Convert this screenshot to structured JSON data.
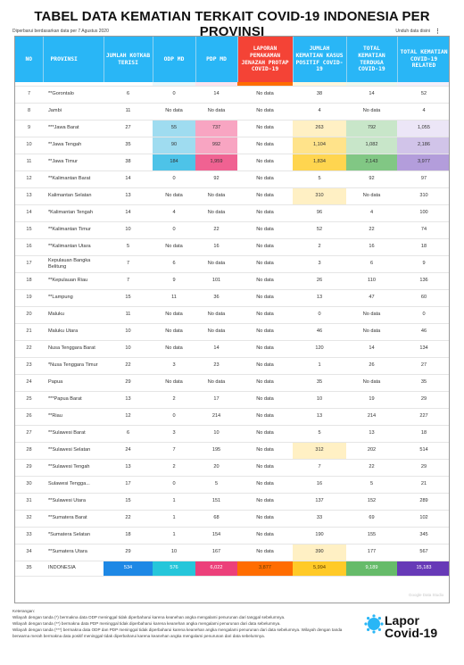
{
  "title": "TABEL DATA KEMATIAN TERKAIT COVID-19 INDONESIA PER PROVINSI",
  "updated": "Diperbarui berdasarkan data per 7 Agustus 2020",
  "download": "Unduh data disini",
  "headers": [
    "NO",
    "PROVINSI",
    "JUMLAH KOTKAB TERISI",
    "ODP MD",
    "PDP MD",
    "LAPORAN PEMAKAMAN JENAZAH PROTAP COVID-19",
    "JUMLAH KEMATIAN KASUS POSITIF COVID-19",
    "TOTAL KEMATIAN TERDUGA COVID-19",
    "TOTAL KEMATIAN COVID-19 RELATED"
  ],
  "header_colors": [
    "#29b6f6",
    "#29b6f6",
    "#29b6f6",
    "#29b6f6",
    "#29b6f6",
    "#f44336",
    "#29b6f6",
    "#29b6f6",
    "#29b6f6"
  ],
  "rows": [
    [
      "7",
      "**Gorontalo",
      "6",
      "0",
      "14",
      "No data",
      "38",
      "14",
      "52"
    ],
    [
      "8",
      "Jambi",
      "11",
      "No data",
      "No data",
      "No data",
      "4",
      "No data",
      "4"
    ],
    [
      "9",
      "***Jawa Barat",
      "27",
      "55",
      "737",
      "No data",
      "263",
      "792",
      "1,055"
    ],
    [
      "10",
      "**Jawa Tengah",
      "35",
      "90",
      "992",
      "No data",
      "1,104",
      "1,082",
      "2,186"
    ],
    [
      "11",
      "**Jawa Timur",
      "38",
      "184",
      "1,959",
      "No data",
      "1,834",
      "2,143",
      "3,977"
    ],
    [
      "12",
      "**Kalimantan Barat",
      "14",
      "0",
      "92",
      "No data",
      "5",
      "92",
      "97"
    ],
    [
      "13",
      "Kalimantan Selatan",
      "13",
      "No data",
      "No data",
      "No data",
      "310",
      "No data",
      "310"
    ],
    [
      "14",
      "*Kalimantan Tengah",
      "14",
      "4",
      "No data",
      "No data",
      "96",
      "4",
      "100"
    ],
    [
      "15",
      "**Kalimantan Timur",
      "10",
      "0",
      "22",
      "No data",
      "52",
      "22",
      "74"
    ],
    [
      "16",
      "**Kalimantan Utara",
      "5",
      "No data",
      "16",
      "No data",
      "2",
      "16",
      "18"
    ],
    [
      "17",
      "Kepulauan Bangka Belitung",
      "7",
      "6",
      "No data",
      "No data",
      "3",
      "6",
      "9"
    ],
    [
      "18",
      "**Kepulauan Riau",
      "7",
      "9",
      "101",
      "No data",
      "26",
      "110",
      "136"
    ],
    [
      "19",
      "**Lampung",
      "15",
      "11",
      "36",
      "No data",
      "13",
      "47",
      "60"
    ],
    [
      "20",
      "Maluku",
      "11",
      "No data",
      "No data",
      "No data",
      "0",
      "No data",
      "0"
    ],
    [
      "21",
      "Maluku Utara",
      "10",
      "No data",
      "No data",
      "No data",
      "46",
      "No data",
      "46"
    ],
    [
      "22",
      "Nusa Tenggara Barat",
      "10",
      "No data",
      "14",
      "No data",
      "120",
      "14",
      "134"
    ],
    [
      "23",
      "*Nusa Tenggara Timur",
      "22",
      "3",
      "23",
      "No data",
      "1",
      "26",
      "27"
    ],
    [
      "24",
      "Papua",
      "29",
      "No data",
      "No data",
      "No data",
      "35",
      "No data",
      "35"
    ],
    [
      "25",
      "***Papua Barat",
      "13",
      "2",
      "17",
      "No data",
      "10",
      "19",
      "29"
    ],
    [
      "26",
      "**Riau",
      "12",
      "0",
      "214",
      "No data",
      "13",
      "214",
      "227"
    ],
    [
      "27",
      "**Sulawesi Barat",
      "6",
      "3",
      "10",
      "No data",
      "5",
      "13",
      "18"
    ],
    [
      "28",
      "**Sulawesi Selatan",
      "24",
      "7",
      "195",
      "No data",
      "312",
      "202",
      "514"
    ],
    [
      "29",
      "**Sulawesi Tengah",
      "13",
      "2",
      "20",
      "No data",
      "7",
      "22",
      "29"
    ],
    [
      "30",
      "Sulawesi Tengga...",
      "17",
      "0",
      "5",
      "No data",
      "16",
      "5",
      "21"
    ],
    [
      "31",
      "**Sulawesi Utara",
      "15",
      "1",
      "151",
      "No data",
      "137",
      "152",
      "289"
    ],
    [
      "32",
      "**Sumatera Barat",
      "22",
      "1",
      "68",
      "No data",
      "33",
      "69",
      "102"
    ],
    [
      "33",
      "*Sumatera Selatan",
      "18",
      "1",
      "154",
      "No data",
      "190",
      "155",
      "345"
    ],
    [
      "34",
      "**Sumatera Utara",
      "29",
      "10",
      "167",
      "No data",
      "390",
      "177",
      "567"
    ]
  ],
  "total": [
    "35",
    "INDONESIA",
    "534",
    "576",
    "6,022",
    "3,877",
    "5,994",
    "9,189",
    "15,183"
  ],
  "total_colors": [
    "#ffffff",
    "#ffffff",
    "#1e88e5",
    "#26c6da",
    "#ec407a",
    "#ff6d00",
    "#ffca28",
    "#66bb6a",
    "#673ab7"
  ],
  "legend": [
    "Keterangan:",
    "Wilayah dengan tanda (*) bermakna data ODP meninggal tidak diperbaharui karena keanehan angka mengalami penurunan dari tanggal sebelumnya.",
    "Wilayah dengan tanda (**) bermakna data PDP meninggal tidak diperbaharui karena keanehan angka mengalami penurunan dari data sebelumnya.",
    "Wilayah dengan tanda (***) bermakna data ODP dan PDP meninggal tidak diperbaharui karena keanehan angka mengalami penurunan dari data sebelumnya. Wilayah dengan tanda berwarna merah bermakna data positif meninggal tidak diperbaharui karena keanehan angka mengalami penurunan dari data sebelumnya."
  ],
  "logo": {
    "line1": "Lapor",
    "line2": "Covid-19"
  },
  "watermark": "Google Data Studio"
}
